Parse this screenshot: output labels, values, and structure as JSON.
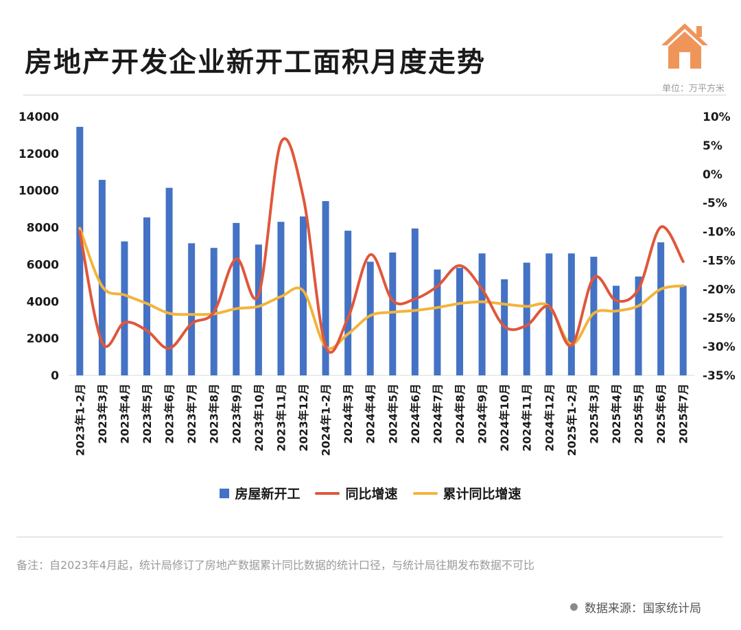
{
  "header": {
    "title": "房地产开发企业新开工面积月度走势",
    "unit": "单位：万平方米"
  },
  "colors": {
    "bar": "#4472c4",
    "yoy": "#e0573b",
    "cumulative": "#f2b43c",
    "logo": "#f0955a"
  },
  "icons": {
    "logo": "house-icon",
    "source_dot": "bullet-dot-icon"
  },
  "chart_data": {
    "type": "bar",
    "categories": [
      "2023年1-2月",
      "2023年3月",
      "2023年4月",
      "2023年5月",
      "2023年6月",
      "2023年7月",
      "2023年8月",
      "2023年9月",
      "2023年10月",
      "2023年11月",
      "2023年12月",
      "2024年1-2月",
      "2024年3月",
      "2024年4月",
      "2024年5月",
      "2024年6月",
      "2024年7月",
      "2024年8月",
      "2024年9月",
      "2024年10月",
      "2024年11月",
      "2024年12月",
      "2025年1-2月",
      "2025年3月",
      "2025年4月",
      "2025年5月",
      "2025年6月",
      "2025年7月"
    ],
    "series": [
      {
        "name": "房屋新开工",
        "type": "bar",
        "axis": "left",
        "values": [
          13450,
          10580,
          7250,
          8550,
          10150,
          7150,
          6900,
          8250,
          7080,
          8310,
          8600,
          9430,
          7830,
          6150,
          6650,
          7950,
          5730,
          5820,
          6600,
          5200,
          6100,
          6600,
          6600,
          6420,
          4850,
          5350,
          7200,
          4850
        ]
      },
      {
        "name": "同比增速",
        "type": "line",
        "axis": "right",
        "values": [
          -10,
          -29.3,
          -25.8,
          -27.2,
          -30.3,
          -26,
          -24,
          -14.7,
          -21,
          5.5,
          -4,
          -29.9,
          -25,
          -14,
          -22,
          -21.7,
          -19.5,
          -15.9,
          -20,
          -26.5,
          -26.3,
          -23,
          -29.8,
          -18,
          -22,
          -20,
          -9.2,
          -15.2
        ]
      },
      {
        "name": "累计同比增速",
        "type": "line",
        "axis": "right",
        "values": [
          -9.4,
          -19.5,
          -21,
          -22.5,
          -24.2,
          -24.4,
          -24.3,
          -23.4,
          -23,
          -21.3,
          -20.3,
          -30,
          -27.8,
          -24.6,
          -24,
          -23.7,
          -23.2,
          -22.5,
          -22.2,
          -22.6,
          -23,
          -23,
          -29.6,
          -24.2,
          -23.8,
          -22.9,
          -20,
          -19.4
        ]
      }
    ],
    "y_left": {
      "min": 0,
      "max": 14000,
      "ticks": [
        "0",
        "2000",
        "4000",
        "6000",
        "8000",
        "10000",
        "12000",
        "14000"
      ]
    },
    "y_right": {
      "min": -35,
      "max": 10,
      "ticks": [
        "-35%",
        "-30%",
        "-25%",
        "-20%",
        "-15%",
        "-10%",
        "-5%",
        "0%",
        "5%",
        "10%"
      ]
    },
    "legend_position": "bottom",
    "grid": false
  },
  "footer": {
    "note": "备注：自2023年4月起，统计局修订了房地产数据累计同比数据的统计口径，与统计局往期发布数据不可比",
    "source": "数据来源：国家统计局"
  }
}
